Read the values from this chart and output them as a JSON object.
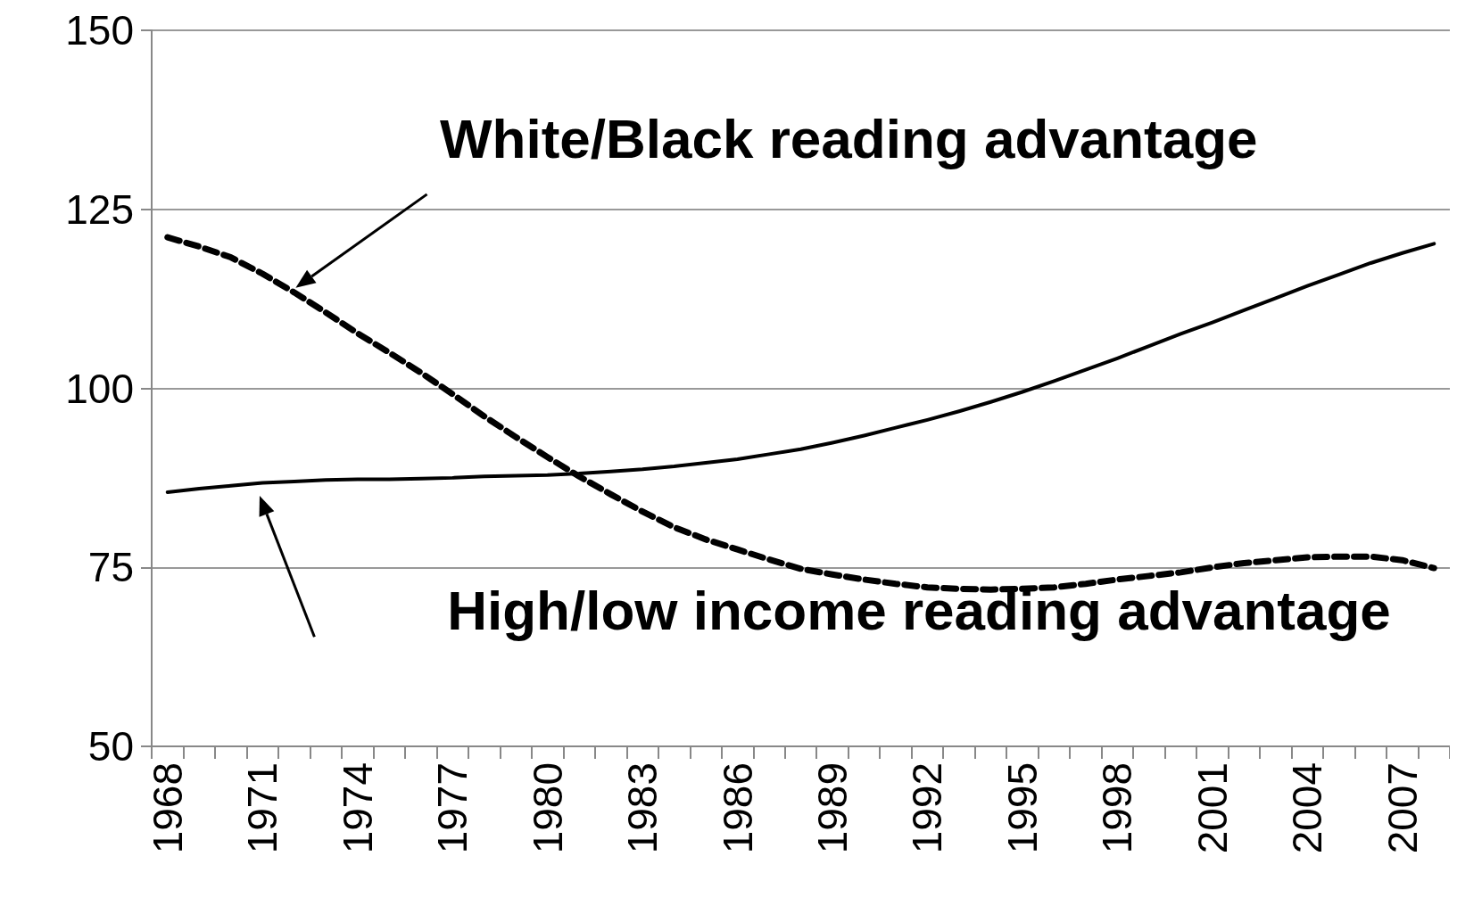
{
  "chart_data": {
    "type": "line",
    "categories": [
      "1968",
      null,
      null,
      "1971",
      null,
      null,
      "1974",
      null,
      null,
      "1977",
      null,
      null,
      "1980",
      null,
      null,
      "1983",
      null,
      null,
      "1986",
      null,
      null,
      "1989",
      null,
      null,
      "1992",
      null,
      null,
      "1995",
      null,
      null,
      "1998",
      null,
      null,
      "2001",
      null,
      null,
      "2004",
      null,
      null,
      "2007",
      null
    ],
    "series": [
      {
        "color": "#000000",
        "line_style": "dashed",
        "values": [
          121.1,
          119.8,
          118.3,
          116.0,
          113.4,
          110.6,
          107.7,
          105.0,
          102.2,
          99.2,
          96.1,
          93.2,
          90.4,
          87.7,
          85.2,
          82.8,
          80.6,
          78.9,
          77.5,
          76.1,
          74.8,
          74.0,
          73.3,
          72.7,
          72.2,
          72.0,
          71.9,
          72.0,
          72.2,
          72.7,
          73.3,
          73.8,
          74.3,
          75.0,
          75.6,
          76.0,
          76.4,
          76.5,
          76.5,
          76.0,
          74.9
        ]
      },
      {
        "color": "#000000",
        "line_style": "solid",
        "values": [
          85.5,
          86.0,
          86.4,
          86.8,
          87.0,
          87.2,
          87.3,
          87.3,
          87.4,
          87.5,
          87.7,
          87.8,
          87.9,
          88.1,
          88.4,
          88.7,
          89.1,
          89.6,
          90.1,
          90.8,
          91.5,
          92.4,
          93.4,
          94.5,
          95.6,
          96.8,
          98.1,
          99.5,
          101.0,
          102.6,
          104.2,
          105.9,
          107.6,
          109.2,
          110.9,
          112.6,
          114.3,
          115.9,
          117.5,
          118.9,
          120.2
        ]
      }
    ],
    "ylim": [
      50,
      150
    ],
    "yticks": [
      50,
      75,
      100,
      125,
      150
    ],
    "grid": "y",
    "marker": "none",
    "annotations": [
      "White/Black reading advantage",
      "High/low income reading advantage"
    ]
  }
}
